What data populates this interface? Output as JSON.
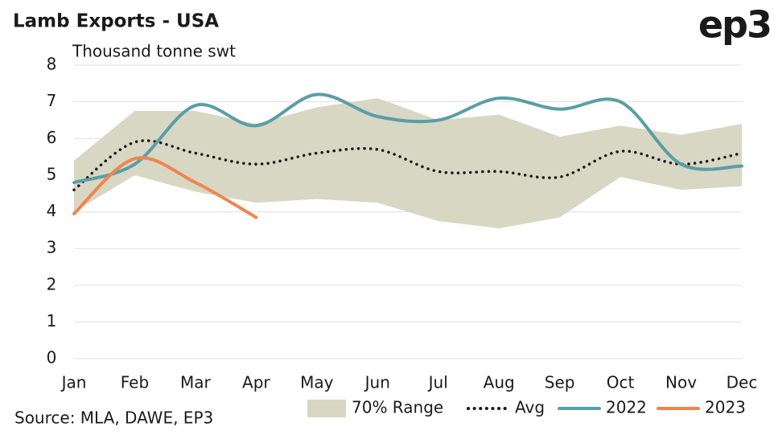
{
  "chart_data": {
    "type": "line",
    "title": "Lamb Exports - USA",
    "logo": "ep3",
    "y_label": "Thousand tonne swt",
    "source": "Source: MLA, DAWE, EP3",
    "categories": [
      "Jan",
      "Feb",
      "Mar",
      "Apr",
      "May",
      "Jun",
      "Jul",
      "Aug",
      "Sep",
      "Oct",
      "Nov",
      "Dec"
    ],
    "ylim": [
      0,
      8
    ],
    "yticks": [
      0,
      1,
      2,
      3,
      4,
      5,
      6,
      7,
      8
    ],
    "grid": true,
    "legend": "bottom",
    "series": [
      {
        "name": "70% Range",
        "color": "#d7d7c4",
        "high": [
          5.4,
          6.75,
          6.75,
          6.4,
          6.85,
          7.1,
          6.5,
          6.65,
          6.05,
          6.35,
          6.1,
          6.4
        ],
        "low": [
          4.0,
          5.0,
          4.55,
          4.25,
          4.35,
          4.25,
          3.75,
          3.55,
          3.85,
          4.95,
          4.6,
          4.7
        ]
      },
      {
        "name": "Avg",
        "color": "#1a1a1a",
        "style": "dotted",
        "values": [
          4.6,
          5.9,
          5.6,
          5.3,
          5.6,
          5.7,
          5.1,
          5.1,
          4.95,
          5.65,
          5.3,
          5.6
        ]
      },
      {
        "name": "2022",
        "color": "#5a9ea6",
        "values": [
          4.8,
          5.3,
          6.9,
          6.35,
          7.2,
          6.6,
          6.5,
          7.1,
          6.8,
          7.0,
          5.3,
          5.25
        ]
      },
      {
        "name": "2023",
        "color": "#f0854f",
        "values": [
          3.95,
          5.45,
          4.8,
          3.85,
          null,
          null,
          null,
          null,
          null,
          null,
          null,
          null
        ]
      }
    ]
  }
}
